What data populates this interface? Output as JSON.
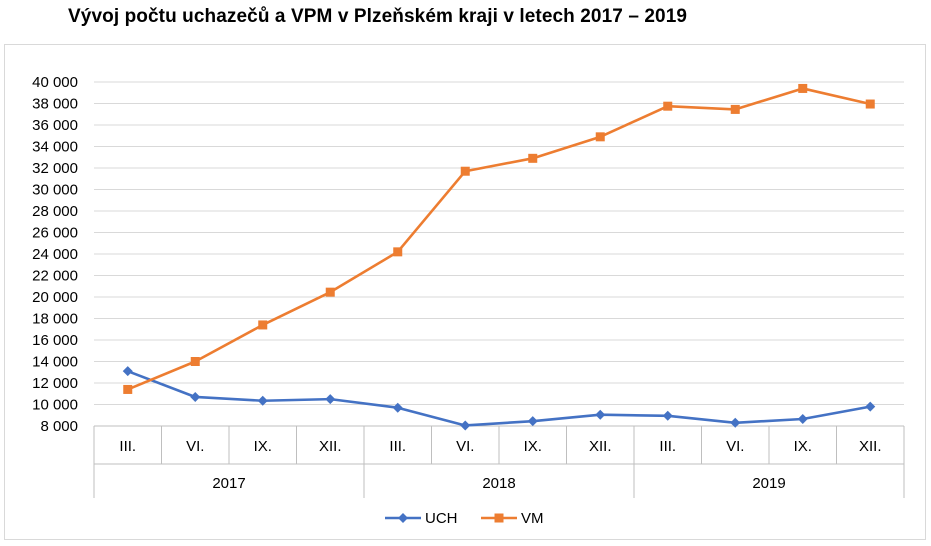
{
  "chart_data": {
    "type": "line",
    "title": "Vývoj počtu uchazečů a VPM v Plzeňském kraji v letech 2017 – 2019",
    "categories": [
      "III.",
      "VI.",
      "IX.",
      "XII.",
      "III.",
      "VI.",
      "IX.",
      "XII.",
      "III.",
      "VI.",
      "IX.",
      "XII."
    ],
    "groups": [
      {
        "label": "2017",
        "count": 4
      },
      {
        "label": "2018",
        "count": 4
      },
      {
        "label": "2019",
        "count": 4
      }
    ],
    "series": [
      {
        "name": "UCH",
        "color": "#4472C4",
        "marker": "diamond",
        "values": [
          13100,
          10700,
          10350,
          10500,
          9700,
          8050,
          8450,
          9050,
          8950,
          8300,
          8650,
          9800
        ]
      },
      {
        "name": "VM",
        "color": "#ED7D31",
        "marker": "square",
        "values": [
          11400,
          14000,
          17400,
          20450,
          24200,
          31700,
          32900,
          34900,
          37750,
          37450,
          39400,
          37950
        ]
      }
    ],
    "ylim": [
      8000,
      40000
    ],
    "yticks": [
      "8 000",
      "10 000",
      "12 000",
      "14 000",
      "16 000",
      "18 000",
      "20 000",
      "22 000",
      "24 000",
      "26 000",
      "28 000",
      "30 000",
      "32 000",
      "34 000",
      "36 000",
      "38 000",
      "40 000"
    ],
    "grid": true,
    "legend": "bottom"
  }
}
